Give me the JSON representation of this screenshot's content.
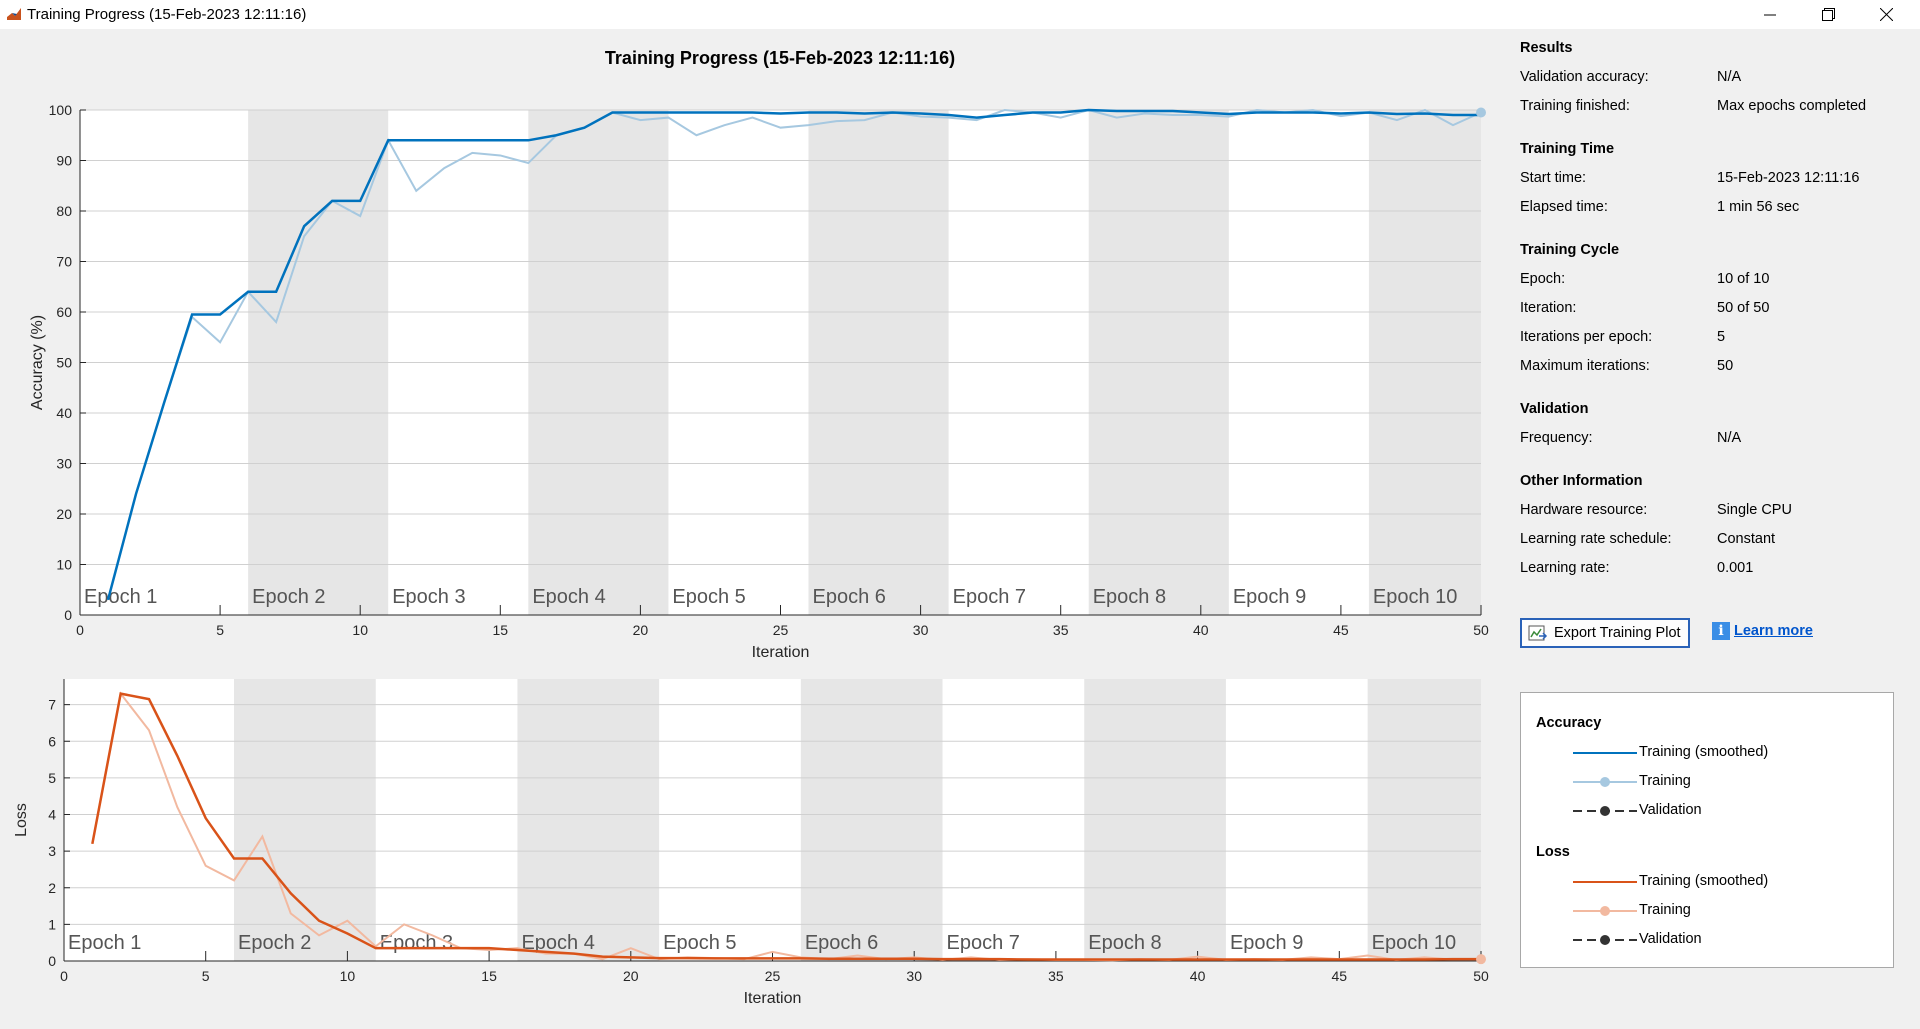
{
  "window": {
    "title": "Training Progress (15-Feb-2023 12:11:16)"
  },
  "plot_title": "Training Progress (15-Feb-2023 12:11:16)",
  "epoch_labels": [
    "Epoch 1",
    "Epoch 2",
    "Epoch 3",
    "Epoch 4",
    "Epoch 5",
    "Epoch 6",
    "Epoch 7",
    "Epoch 8",
    "Epoch 9",
    "Epoch 10"
  ],
  "panel": {
    "results": {
      "title": "Results",
      "rows": [
        {
          "label": "Validation accuracy:",
          "value": "N/A"
        },
        {
          "label": "Training finished:",
          "value": "Max epochs completed"
        }
      ]
    },
    "training_time": {
      "title": "Training Time",
      "rows": [
        {
          "label": "Start time:",
          "value": "15-Feb-2023 12:11:16"
        },
        {
          "label": "Elapsed time:",
          "value": "1 min 56 sec"
        }
      ]
    },
    "training_cycle": {
      "title": "Training Cycle",
      "rows": [
        {
          "label": "Epoch:",
          "value": "10 of 10"
        },
        {
          "label": "Iteration:",
          "value": "50 of 50"
        },
        {
          "label": "Iterations per epoch:",
          "value": "5"
        },
        {
          "label": "Maximum iterations:",
          "value": "50"
        }
      ]
    },
    "validation": {
      "title": "Validation",
      "rows": [
        {
          "label": "Frequency:",
          "value": "N/A"
        }
      ]
    },
    "other": {
      "title": "Other Information",
      "rows": [
        {
          "label": "Hardware resource:",
          "value": "Single CPU"
        },
        {
          "label": "Learning rate schedule:",
          "value": "Constant"
        },
        {
          "label": "Learning rate:",
          "value": "0.001"
        }
      ]
    }
  },
  "buttons": {
    "export_label": "Export Training Plot",
    "learn_more_label": "Learn more"
  },
  "legend": {
    "accuracy_title": "Accuracy",
    "loss_title": "Loss",
    "accuracy_items": [
      "Training (smoothed)",
      "Training",
      "Validation"
    ],
    "loss_items": [
      "Training (smoothed)",
      "Training",
      "Validation"
    ]
  },
  "colors": {
    "accuracy_smoothed": "#0072bd",
    "accuracy_raw": "#a6c8e0",
    "loss_smoothed": "#d95319",
    "loss_raw": "#f2b9a0",
    "epoch_shade": "#e6e6e6",
    "validation": "#333333"
  },
  "chart_data": [
    {
      "type": "line",
      "xlabel": "Iteration",
      "ylabel": "Accuracy (%)",
      "xlim": [
        0,
        50
      ],
      "ylim": [
        0,
        100
      ],
      "xticks": [
        0,
        5,
        10,
        15,
        20,
        25,
        30,
        35,
        40,
        45,
        50
      ],
      "yticks": [
        0,
        10,
        20,
        30,
        40,
        50,
        60,
        70,
        80,
        90,
        100
      ],
      "series": [
        {
          "name": "Training (smoothed)",
          "x": [
            1,
            2,
            3,
            4,
            5,
            6,
            7,
            8,
            9,
            10,
            11,
            12,
            13,
            14,
            15,
            16,
            17,
            18,
            19,
            20,
            21,
            22,
            23,
            24,
            25,
            26,
            27,
            28,
            29,
            30,
            31,
            32,
            33,
            34,
            35,
            36,
            37,
            38,
            39,
            40,
            41,
            42,
            43,
            44,
            45,
            46,
            47,
            48,
            49,
            50
          ],
          "y": [
            3,
            24,
            42,
            59.5,
            59.5,
            64,
            64,
            77,
            82,
            82,
            94,
            94,
            94,
            94,
            94,
            94,
            95,
            96.5,
            99.5,
            99.5,
            99.5,
            99.5,
            99.5,
            99.5,
            99.3,
            99.5,
            99.5,
            99.3,
            99.5,
            99.3,
            99,
            98.5,
            99,
            99.5,
            99.5,
            100,
            99.8,
            99.8,
            99.8,
            99.5,
            99.2,
            99.5,
            99.5,
            99.5,
            99.3,
            99.5,
            99.2,
            99.3,
            99,
            99
          ]
        },
        {
          "name": "Training",
          "x": [
            1,
            2,
            3,
            4,
            5,
            6,
            7,
            8,
            9,
            10,
            11,
            12,
            13,
            14,
            15,
            16,
            17,
            18,
            19,
            20,
            21,
            22,
            23,
            24,
            25,
            26,
            27,
            28,
            29,
            30,
            31,
            32,
            33,
            34,
            35,
            36,
            37,
            38,
            39,
            40,
            41,
            42,
            43,
            44,
            45,
            46,
            47,
            48,
            49,
            50
          ],
          "y": [
            3,
            24,
            42,
            59,
            54,
            64,
            58,
            75,
            82,
            79,
            94,
            84,
            88.5,
            91.5,
            91,
            89.5,
            95,
            96.5,
            99.5,
            98,
            98.5,
            95,
            97,
            98.5,
            96.5,
            97,
            97.8,
            98,
            99.5,
            98.7,
            98.5,
            98,
            100,
            99.5,
            98.5,
            100,
            98.5,
            99.3,
            99,
            99,
            98.7,
            100,
            99.5,
            100,
            98.8,
            99.5,
            98,
            100,
            97,
            99.5
          ]
        }
      ]
    },
    {
      "type": "line",
      "xlabel": "Iteration",
      "ylabel": "Loss",
      "xlim": [
        0,
        50
      ],
      "ylim": [
        0,
        7.7
      ],
      "xticks": [
        0,
        5,
        10,
        15,
        20,
        25,
        30,
        35,
        40,
        45,
        50
      ],
      "yticks": [
        0,
        1,
        2,
        3,
        4,
        5,
        6,
        7
      ],
      "series": [
        {
          "name": "Training (smoothed)",
          "x": [
            1,
            2,
            3,
            4,
            5,
            6,
            7,
            8,
            9,
            10,
            11,
            12,
            13,
            14,
            15,
            16,
            17,
            18,
            19,
            20,
            21,
            22,
            23,
            24,
            25,
            26,
            27,
            28,
            29,
            30,
            31,
            32,
            33,
            34,
            35,
            36,
            37,
            38,
            39,
            40,
            41,
            42,
            43,
            44,
            45,
            46,
            47,
            48,
            49,
            50
          ],
          "y": [
            3.2,
            7.3,
            7.15,
            5.6,
            3.9,
            2.8,
            2.8,
            1.85,
            1.1,
            0.75,
            0.35,
            0.35,
            0.35,
            0.35,
            0.35,
            0.3,
            0.25,
            0.2,
            0.12,
            0.1,
            0.08,
            0.08,
            0.07,
            0.07,
            0.07,
            0.07,
            0.06,
            0.06,
            0.06,
            0.06,
            0.05,
            0.05,
            0.05,
            0.04,
            0.04,
            0.04,
            0.04,
            0.04,
            0.04,
            0.04,
            0.04,
            0.04,
            0.04,
            0.04,
            0.04,
            0.04,
            0.04,
            0.04,
            0.05,
            0.05
          ]
        },
        {
          "name": "Training",
          "x": [
            1,
            2,
            3,
            4,
            5,
            6,
            7,
            8,
            9,
            10,
            11,
            12,
            13,
            14,
            15,
            16,
            17,
            18,
            19,
            20,
            21,
            22,
            23,
            24,
            25,
            26,
            27,
            28,
            29,
            30,
            31,
            32,
            33,
            34,
            35,
            36,
            37,
            38,
            39,
            40,
            41,
            42,
            43,
            44,
            45,
            46,
            47,
            48,
            49,
            50
          ],
          "y": [
            3.2,
            7.3,
            6.3,
            4.2,
            2.6,
            2.2,
            3.4,
            1.3,
            0.7,
            1.1,
            0.4,
            1.0,
            0.7,
            0.35,
            0.3,
            0.35,
            0.2,
            0.2,
            0.05,
            0.35,
            0.05,
            0.1,
            0.08,
            0.05,
            0.25,
            0.1,
            0.05,
            0.15,
            0.05,
            0.1,
            0.03,
            0.1,
            0.03,
            0.05,
            0.03,
            0.03,
            0.02,
            0.05,
            0.03,
            0.12,
            0.03,
            0.05,
            0.03,
            0.1,
            0.05,
            0.15,
            0.03,
            0.1,
            0.04,
            0.05
          ]
        }
      ]
    }
  ]
}
